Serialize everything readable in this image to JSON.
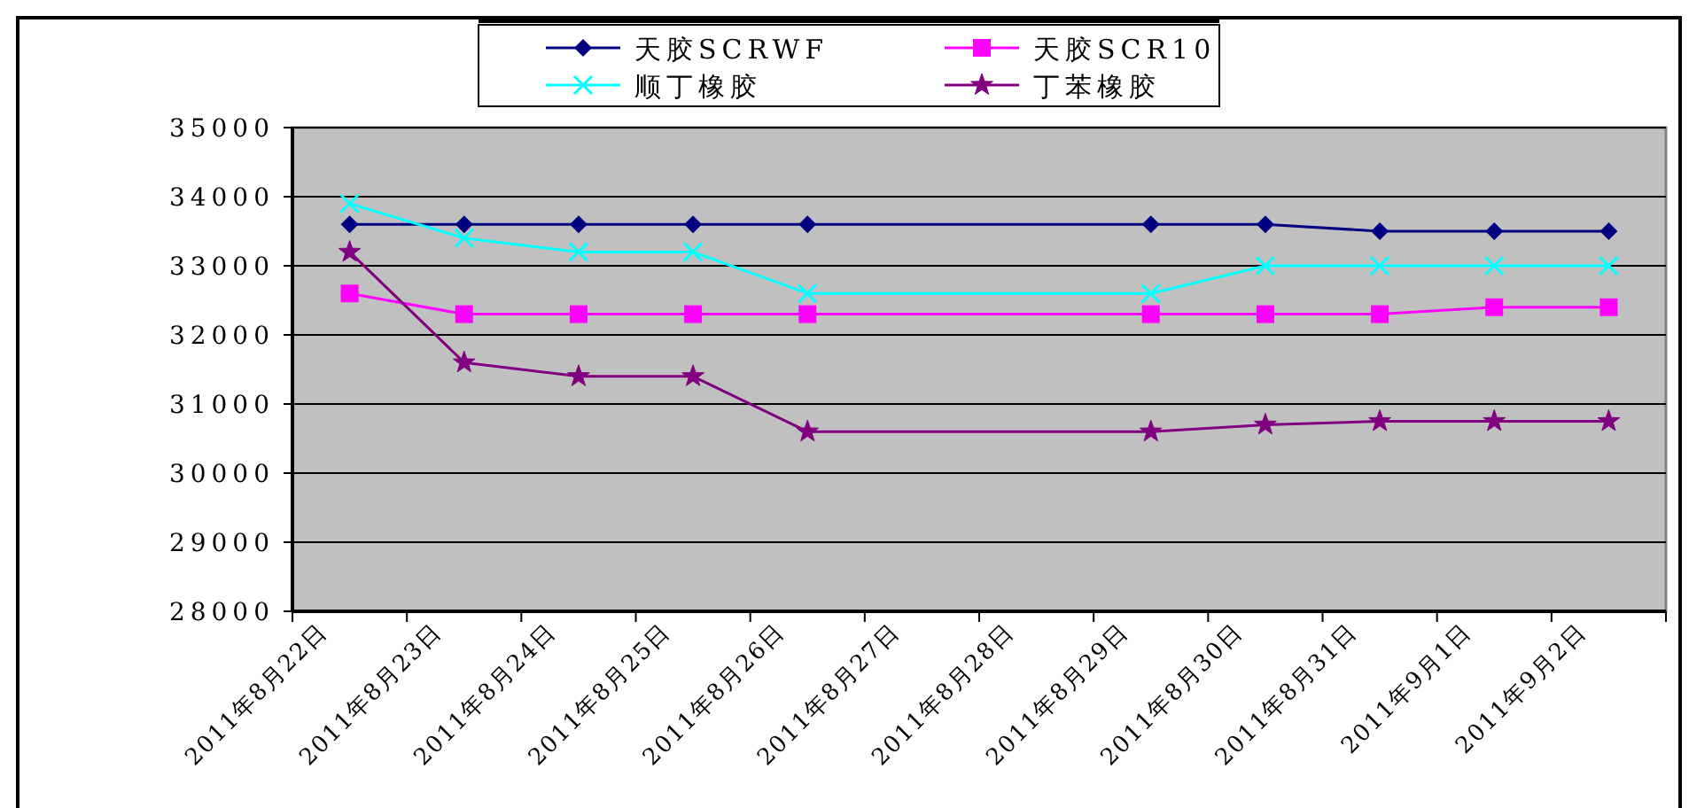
{
  "chart_data": {
    "type": "line",
    "categories": [
      "2011年8月22日",
      "2011年8月23日",
      "2011年8月24日",
      "2011年8月25日",
      "2011年8月26日",
      "2011年8月27日",
      "2011年8月28日",
      "2011年8月29日",
      "2011年8月30日",
      "2011年8月31日",
      "2011年9月1日",
      "2011年9月2日"
    ],
    "series": [
      {
        "name": "天胶SCRWF",
        "color": "#000080",
        "marker": "diamond",
        "values": [
          33600,
          33600,
          33600,
          33600,
          33600,
          null,
          null,
          33600,
          33600,
          33500,
          33500,
          33500
        ]
      },
      {
        "name": "天胶SCR10",
        "color": "#ff00ff",
        "marker": "square",
        "values": [
          32600,
          32300,
          32300,
          32300,
          32300,
          null,
          null,
          32300,
          32300,
          32300,
          32400,
          32400
        ]
      },
      {
        "name": "顺丁橡胶",
        "color": "#00ffff",
        "marker": "cross",
        "values": [
          33900,
          33400,
          33200,
          33200,
          32600,
          null,
          null,
          32600,
          33000,
          33000,
          33000,
          33000
        ]
      },
      {
        "name": "丁苯橡胶",
        "color": "#800080",
        "marker": "star",
        "values": [
          33200,
          31600,
          31400,
          31400,
          30600,
          null,
          null,
          30600,
          30700,
          30750,
          30750,
          30750
        ]
      }
    ],
    "ylim": [
      28000,
      35000
    ],
    "yticks": [
      28000,
      29000,
      30000,
      31000,
      32000,
      33000,
      34000,
      35000
    ],
    "grid": "y",
    "legend": "top"
  }
}
